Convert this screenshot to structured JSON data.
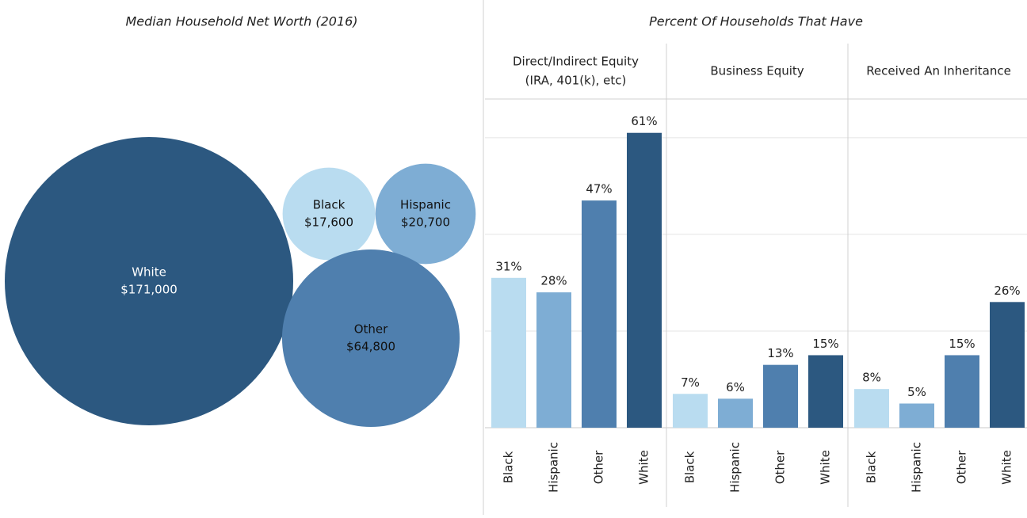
{
  "chart_data": [
    {
      "type": "bubble",
      "title": "Median Household Net Worth (2016)",
      "categories": [
        "White",
        "Black",
        "Hispanic",
        "Other"
      ],
      "values": [
        171000,
        17600,
        20700,
        64800
      ],
      "value_labels": [
        "$171,000",
        "$17,600",
        "$20,700",
        "$64,800"
      ],
      "colors": [
        "#2c5880",
        "#b9dcf0",
        "#7eadd4",
        "#4f7fae"
      ]
    },
    {
      "type": "bar",
      "title": "Percent Of Households That Have",
      "categories": [
        "Black",
        "Hispanic",
        "Other",
        "White"
      ],
      "colors": [
        "#b9dcf0",
        "#7eadd4",
        "#4f7fae",
        "#2c5880"
      ],
      "ylim": [
        0,
        68
      ],
      "yticks": [
        20,
        40,
        60
      ],
      "grid": true,
      "facets": [
        {
          "title_lines": [
            "Direct/Indirect Equity",
            "(IRA, 401(k), etc)"
          ],
          "values": [
            31,
            28,
            47,
            61
          ],
          "value_labels": [
            "31%",
            "28%",
            "47%",
            "61%"
          ]
        },
        {
          "title_lines": [
            "Business Equity"
          ],
          "values": [
            7,
            6,
            13,
            15
          ],
          "value_labels": [
            "7%",
            "6%",
            "13%",
            "15%"
          ]
        },
        {
          "title_lines": [
            "Received An Inheritance"
          ],
          "values": [
            8,
            5,
            15,
            26
          ],
          "value_labels": [
            "8%",
            "5%",
            "15%",
            "26%"
          ]
        }
      ]
    }
  ]
}
